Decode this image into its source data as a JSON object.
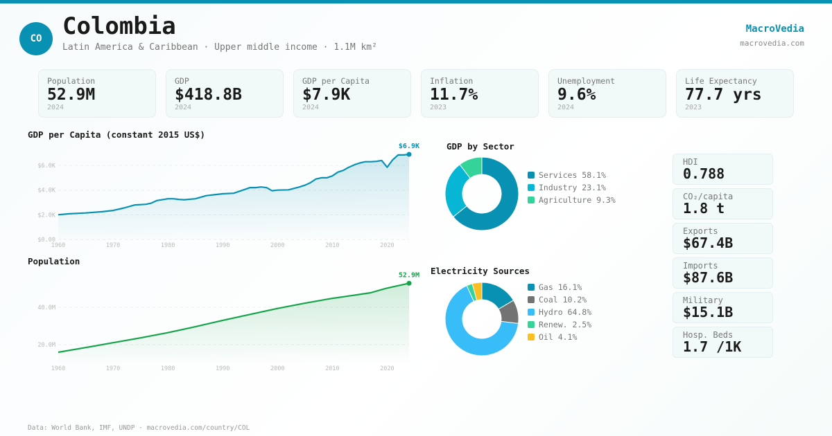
{
  "header": {
    "flag_code": "CO",
    "title": "Colombia",
    "subtitle": "Latin America & Caribbean · Upper middle income · 1.1M km²",
    "brand": "MacroVedia",
    "brand_url": "macrovedia.com"
  },
  "stats": [
    {
      "label": "Population",
      "value": "52.9M",
      "year": "2024"
    },
    {
      "label": "GDP",
      "value": "$418.8B",
      "year": "2024"
    },
    {
      "label": "GDP per Capita",
      "value": "$7.9K",
      "year": "2024"
    },
    {
      "label": "Inflation",
      "value": "11.7%",
      "year": "2023"
    },
    {
      "label": "Unemployment",
      "value": "9.6%",
      "year": "2024"
    },
    {
      "label": "Life Expectancy",
      "value": "77.7 yrs",
      "year": "2023"
    }
  ],
  "side_stats": [
    {
      "label": "HDI",
      "value": "0.788"
    },
    {
      "label": "CO₂/capita",
      "value": "1.8 t"
    },
    {
      "label": "Exports",
      "value": "$67.4B"
    },
    {
      "label": "Imports",
      "value": "$87.6B"
    },
    {
      "label": "Military",
      "value": "$15.1B"
    },
    {
      "label": "Hosp. Beds",
      "value": "1.7 /1K"
    }
  ],
  "footer": "Data: World Bank, IMF, UNDP · macrovedia.com/country/COL",
  "colors": {
    "accent": "#0891b2",
    "green": "#16a34a"
  },
  "chart_data": [
    {
      "type": "area",
      "title": "GDP per Capita (constant 2015 US$)",
      "end_label": "$6.9K",
      "ylim": [
        0,
        6.9
      ],
      "yticks": [
        {
          "v": 0,
          "label": "$0.00"
        },
        {
          "v": 2,
          "label": "$2.0K"
        },
        {
          "v": 4,
          "label": "$4.0K"
        },
        {
          "v": 6,
          "label": "$6.0K"
        }
      ],
      "xticks": [
        1960,
        1970,
        1980,
        1990,
        2000,
        2010,
        2020
      ],
      "x": [
        1960,
        1962,
        1965,
        1968,
        1970,
        1972,
        1974,
        1976,
        1977,
        1978,
        1980,
        1981,
        1982,
        1983,
        1985,
        1987,
        1989,
        1990,
        1992,
        1994,
        1995,
        1996,
        1997,
        1998,
        1999,
        2000,
        2002,
        2004,
        2005,
        2006,
        2007,
        2008,
        2009,
        2010,
        2011,
        2012,
        2013,
        2014,
        2015,
        2016,
        2017,
        2018,
        2019,
        2020,
        2021,
        2022,
        2023,
        2024
      ],
      "y": [
        2.0,
        2.08,
        2.15,
        2.25,
        2.35,
        2.55,
        2.8,
        2.85,
        2.95,
        3.15,
        3.3,
        3.3,
        3.25,
        3.22,
        3.3,
        3.55,
        3.65,
        3.7,
        3.75,
        4.05,
        4.2,
        4.2,
        4.25,
        4.2,
        3.95,
        4.0,
        4.02,
        4.25,
        4.4,
        4.6,
        4.9,
        5.0,
        5.0,
        5.15,
        5.45,
        5.6,
        5.85,
        6.05,
        6.2,
        6.3,
        6.3,
        6.33,
        6.4,
        5.85,
        6.45,
        6.85,
        6.85,
        6.9
      ],
      "color": "#0891b2"
    },
    {
      "type": "area",
      "title": "Population",
      "end_label": "52.9M",
      "ylim": [
        10.7,
        53
      ],
      "yticks": [
        {
          "v": 20,
          "label": "20.0M"
        },
        {
          "v": 40,
          "label": "40.0M"
        }
      ],
      "xticks": [
        1960,
        1970,
        1980,
        1990,
        2000,
        2010,
        2020
      ],
      "x": [
        1960,
        1965,
        1970,
        1975,
        1980,
        1985,
        1990,
        1995,
        2000,
        2005,
        2010,
        2015,
        2017,
        2019,
        2020,
        2022,
        2024
      ],
      "y": [
        15.9,
        18.4,
        21.0,
        23.6,
        26.4,
        29.6,
        33.0,
        36.2,
        39.4,
        42.2,
        44.8,
        46.9,
        47.8,
        49.5,
        50.3,
        51.6,
        52.9
      ],
      "color": "#16a34a"
    },
    {
      "type": "pie",
      "title": "GDP by Sector",
      "slices": [
        {
          "label": "Services",
          "value": 58.1,
          "text": "Services 58.1%",
          "color": "#0891b2"
        },
        {
          "label": "Industry",
          "value": 23.1,
          "text": "Industry 23.1%",
          "color": "#06b6d4"
        },
        {
          "label": "Agriculture",
          "value": 9.3,
          "text": "Agriculture 9.3%",
          "color": "#34d399"
        }
      ]
    },
    {
      "type": "pie",
      "title": "Electricity Sources",
      "slices": [
        {
          "label": "Gas",
          "value": 16.1,
          "text": "Gas 16.1%",
          "color": "#0891b2"
        },
        {
          "label": "Coal",
          "value": 10.2,
          "text": "Coal 10.2%",
          "color": "#737373"
        },
        {
          "label": "Hydro",
          "value": 64.8,
          "text": "Hydro 64.8%",
          "color": "#38bdf8"
        },
        {
          "label": "Renew.",
          "value": 2.5,
          "text": "Renew. 2.5%",
          "color": "#34d399"
        },
        {
          "label": "Oil",
          "value": 4.1,
          "text": "Oil 4.1%",
          "color": "#fbbf24"
        }
      ]
    }
  ]
}
